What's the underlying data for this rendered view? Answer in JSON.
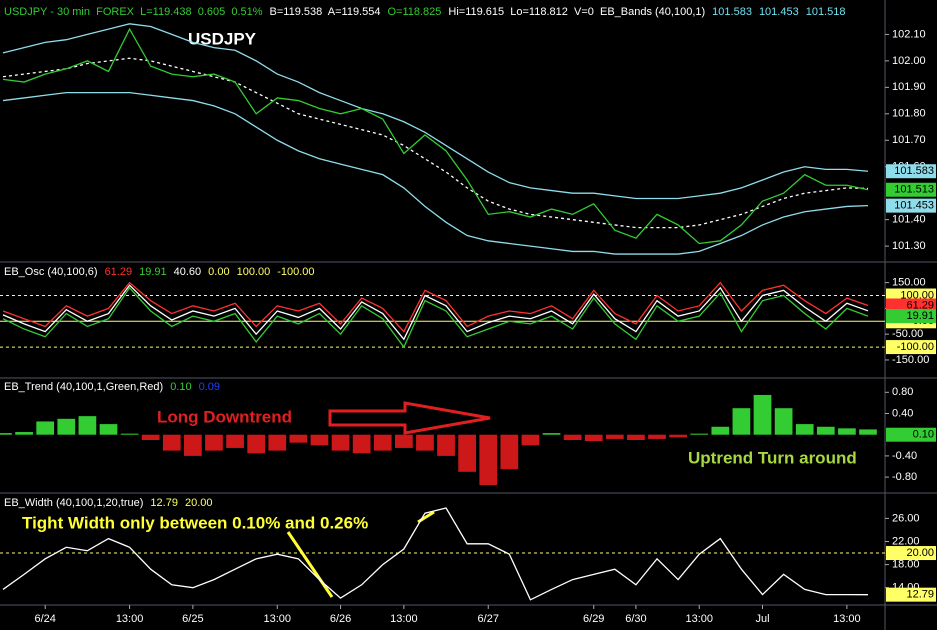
{
  "chart_data": [
    {
      "type": "line",
      "title": "USDJPY",
      "header": [
        {
          "text": "USDJPY - 30 min  FOREX  L=119.438  0.605  0.51%",
          "color": "#33cc33"
        },
        {
          "text": "B=119.538  A=119.554",
          "color": "#ffffff"
        },
        {
          "text": "O=118.825",
          "color": "#33cc33"
        },
        {
          "text": "Hi=119.615  Lo=118.812  V=0  EB_Bands (40,100,1)",
          "color": "#ffffff"
        },
        {
          "text": "101.583",
          "color": "#6fe0f0"
        },
        {
          "text": "101.453",
          "color": "#6fe0f0"
        },
        {
          "text": "101.518",
          "color": "#6fe0f0"
        }
      ],
      "ylim": [
        101.24,
        102.23
      ],
      "yticks": [
        {
          "value": 102.1,
          "label": "102.10"
        },
        {
          "value": 102,
          "label": "102.00"
        },
        {
          "value": 101.9,
          "label": "101.90"
        },
        {
          "value": 101.8,
          "label": "101.80"
        },
        {
          "value": 101.7,
          "label": "101.70"
        },
        {
          "value": 101.6,
          "label": "101.60"
        },
        {
          "value": 101.4,
          "label": "101.40"
        },
        {
          "value": 101.3,
          "label": "101.30"
        }
      ],
      "series": [
        {
          "color": "#8fdcea",
          "values": [
            102.03,
            102.05,
            102.07,
            102.08,
            102.1,
            102.12,
            102.14,
            102.13,
            102.1,
            102.07,
            102.05,
            102.04,
            102.0,
            101.95,
            101.92,
            101.88,
            101.85,
            101.82,
            101.8,
            101.77,
            101.73,
            101.68,
            101.63,
            101.58,
            101.54,
            101.52,
            101.51,
            101.5,
            101.5,
            101.49,
            101.48,
            101.48,
            101.48,
            101.49,
            101.5,
            101.52,
            101.55,
            101.58,
            101.6,
            101.59,
            101.59,
            101.583
          ],
          "label": "101.583"
        },
        {
          "color": "#8fdcea",
          "values": [
            101.85,
            101.86,
            101.87,
            101.88,
            101.88,
            101.88,
            101.88,
            101.87,
            101.86,
            101.85,
            101.83,
            101.8,
            101.75,
            101.7,
            101.66,
            101.63,
            101.61,
            101.59,
            101.57,
            101.52,
            101.45,
            101.39,
            101.34,
            101.32,
            101.31,
            101.3,
            101.29,
            101.28,
            101.28,
            101.27,
            101.27,
            101.27,
            101.27,
            101.28,
            101.31,
            101.34,
            101.38,
            101.41,
            101.43,
            101.44,
            101.45,
            101.453
          ],
          "label": "101.453"
        },
        {
          "color": "#ffffff",
          "dash": true,
          "values": [
            101.94,
            101.95,
            101.96,
            101.97,
            101.99,
            102.0,
            102.01,
            102.0,
            101.98,
            101.96,
            101.94,
            101.92,
            101.88,
            101.84,
            101.8,
            101.78,
            101.76,
            101.74,
            101.72,
            101.68,
            101.63,
            101.58,
            101.52,
            101.47,
            101.44,
            101.42,
            101.41,
            101.4,
            101.39,
            101.38,
            101.37,
            101.37,
            101.37,
            101.38,
            101.4,
            101.42,
            101.45,
            101.48,
            101.5,
            101.51,
            101.52,
            101.518
          ]
        },
        {
          "color": "#33cc33",
          "values": [
            101.93,
            101.92,
            101.95,
            101.97,
            102.0,
            101.96,
            102.12,
            101.98,
            101.95,
            101.94,
            101.95,
            101.92,
            101.8,
            101.86,
            101.85,
            101.82,
            101.8,
            101.82,
            101.78,
            101.65,
            101.72,
            101.66,
            101.55,
            101.42,
            101.43,
            101.41,
            101.44,
            101.42,
            101.46,
            101.36,
            101.33,
            101.42,
            101.38,
            101.31,
            101.32,
            101.38,
            101.47,
            101.5,
            101.57,
            101.53,
            101.53,
            101.513
          ],
          "label": "101.513"
        }
      ]
    },
    {
      "type": "line",
      "header": [
        {
          "text": "EB_Osc (40,100,6)",
          "color": "#ffffff"
        },
        {
          "text": "61.29",
          "color": "#ff3030"
        },
        {
          "text": "19.91",
          "color": "#33cc33"
        },
        {
          "text": "40.60",
          "color": "#ffffff"
        },
        {
          "text": "0.00",
          "color": "#ffff66"
        },
        {
          "text": "100.00",
          "color": "#ffff66"
        },
        {
          "text": "-100.00",
          "color": "#ffff66"
        }
      ],
      "ylim": [
        -220,
        230
      ],
      "yticks": [
        {
          "value": 150,
          "label": "150.00"
        },
        {
          "value": 50,
          "label": "50.00"
        },
        {
          "value": -50,
          "label": "-50.00"
        },
        {
          "value": -150,
          "label": "-150.00"
        }
      ],
      "levels": [
        {
          "value": 100,
          "label": "100.00",
          "color": "#ffff66",
          "dash": true
        },
        {
          "value": 0,
          "label": "0.00",
          "color": "#ffff66",
          "dash": false
        },
        {
          "value": -100,
          "label": "-100.00",
          "color": "#ffff66",
          "dash": true
        }
      ],
      "series": [
        {
          "color": "#ff3030",
          "values": [
            40,
            10,
            -20,
            60,
            20,
            50,
            150,
            80,
            30,
            60,
            40,
            70,
            -20,
            60,
            40,
            70,
            -10,
            90,
            50,
            -40,
            120,
            80,
            -20,
            20,
            40,
            30,
            60,
            10,
            120,
            30,
            -10,
            100,
            40,
            60,
            150,
            40,
            120,
            140,
            80,
            30,
            90,
            61.29
          ],
          "label": "61.29"
        },
        {
          "color": "#33cc33",
          "values": [
            10,
            -30,
            -60,
            30,
            -20,
            10,
            130,
            40,
            -20,
            20,
            0,
            30,
            -80,
            20,
            -10,
            30,
            -50,
            60,
            10,
            -100,
            80,
            40,
            -60,
            -30,
            0,
            -10,
            20,
            -30,
            90,
            -10,
            -70,
            60,
            0,
            20,
            110,
            -40,
            80,
            100,
            30,
            -30,
            50,
            19.91
          ],
          "label": "19.91"
        },
        {
          "color": "#ffffff",
          "values": [
            25,
            -10,
            -40,
            45,
            0,
            30,
            140,
            60,
            5,
            40,
            20,
            50,
            -50,
            40,
            15,
            50,
            -30,
            75,
            30,
            -70,
            100,
            60,
            -40,
            -5,
            20,
            10,
            40,
            -10,
            105,
            10,
            -40,
            80,
            20,
            40,
            130,
            0,
            100,
            120,
            55,
            0,
            70,
            40.6
          ]
        }
      ]
    },
    {
      "type": "bar",
      "header": [
        {
          "text": "EB_Trend (40,100,1,Green,Red)",
          "color": "#ffffff"
        },
        {
          "text": "0.10",
          "color": "#33cc33"
        },
        {
          "text": "0.09",
          "color": "#2040ff"
        }
      ],
      "ylim": [
        -1.1,
        1.07
      ],
      "yticks": [
        {
          "value": 0.8,
          "label": "0.80"
        },
        {
          "value": 0.4,
          "label": "0.40"
        },
        {
          "value": -0.4,
          "label": "-0.40"
        },
        {
          "value": -0.8,
          "label": "-0.80"
        }
      ],
      "up_color": "#33cc33",
      "down_color": "#cc1818",
      "values": [
        0.03,
        0.05,
        0.25,
        0.3,
        0.35,
        0.2,
        0.02,
        -0.1,
        -0.3,
        -0.4,
        -0.3,
        -0.25,
        -0.35,
        -0.3,
        -0.15,
        -0.2,
        -0.3,
        -0.35,
        -0.3,
        -0.25,
        -0.3,
        -0.4,
        -0.7,
        -0.95,
        -0.65,
        -0.2,
        0.03,
        -0.1,
        -0.12,
        -0.08,
        -0.1,
        -0.08,
        -0.05,
        0.02,
        0.15,
        0.5,
        0.75,
        0.5,
        0.2,
        0.15,
        0.12,
        0.1
      ],
      "label": "0.10",
      "annotations": [
        "Long Downtrend",
        "Uptrend Turn around"
      ]
    },
    {
      "type": "line",
      "header": [
        {
          "text": "EB_Width (40,100,1,20,true)",
          "color": "#ffffff"
        },
        {
          "text": "12.79",
          "color": "#ffff66"
        },
        {
          "text": "20.00",
          "color": "#ffff66"
        }
      ],
      "ylim": [
        11,
        30.4
      ],
      "yticks": [
        {
          "value": 26,
          "label": "26.00"
        },
        {
          "value": 22,
          "label": "22.00"
        },
        {
          "value": 18,
          "label": "18.00"
        },
        {
          "value": 14,
          "label": "14.00"
        }
      ],
      "levels": [
        {
          "value": 20,
          "label": "20.00",
          "color": "#ffff66",
          "dash": true
        }
      ],
      "series": [
        {
          "color": "#ffffff",
          "values": [
            13.7,
            16.3,
            19,
            21,
            20.4,
            22.5,
            21,
            17.2,
            14.5,
            14,
            15.4,
            17.2,
            19,
            19.8,
            19,
            15.4,
            12.2,
            14.5,
            18,
            20.7,
            26.9,
            27.8,
            21.6,
            21.6,
            19.8,
            11.9,
            13.7,
            15.4,
            16.3,
            17.2,
            14.5,
            19,
            15.4,
            19.8,
            22.5,
            17.2,
            12.8,
            16.3,
            13.7,
            12.8,
            12.8,
            12.79
          ],
          "label": "12.79",
          "label_color": "#ffff66"
        }
      ],
      "annotations": [
        "Tight Width only between 0.10% and 0.26%"
      ],
      "categories": [
        null,
        null,
        "6/24",
        null,
        null,
        null,
        "13:00",
        null,
        null,
        "6/25",
        null,
        null,
        null,
        "13:00",
        null,
        null,
        "6/26",
        null,
        null,
        "13:00",
        null,
        null,
        null,
        "6/27",
        null,
        null,
        null,
        null,
        "6/29",
        null,
        "6/30",
        null,
        null,
        "13:00",
        null,
        null,
        "Jul",
        null,
        null,
        null,
        "13:00",
        null
      ]
    }
  ]
}
